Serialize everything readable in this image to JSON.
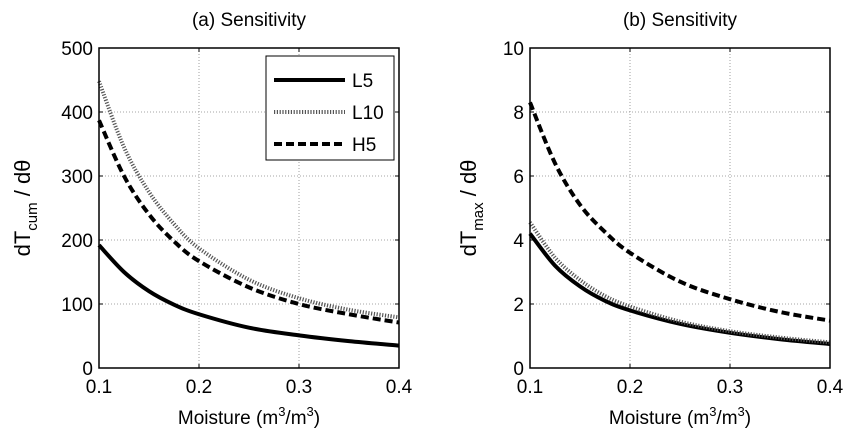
{
  "chart_data": [
    {
      "type": "line",
      "title": "(a) Sensitivity",
      "xlabel": {
        "base": "Moisture (m",
        "sup1": "3",
        "mid": "/m",
        "sup2": "3",
        "end": ")"
      },
      "ylabel": {
        "pre": "dT",
        "sub": "cum",
        "post": " / dθ"
      },
      "xlim": [
        0.1,
        0.4
      ],
      "ylim": [
        0,
        500
      ],
      "xticks": [
        "0.1",
        "0.2",
        "0.3",
        "0.4"
      ],
      "yticks": [
        "0",
        "100",
        "200",
        "300",
        "400",
        "500"
      ],
      "grid": true,
      "legend_position": "top-right",
      "series": [
        {
          "name": "L5",
          "style": "solid",
          "x": [
            0.1,
            0.125,
            0.15,
            0.175,
            0.2,
            0.25,
            0.3,
            0.35,
            0.4
          ],
          "y": [
            192,
            150,
            120,
            99,
            84,
            63,
            51,
            42,
            35
          ]
        },
        {
          "name": "L10",
          "style": "dotted",
          "x": [
            0.1,
            0.125,
            0.15,
            0.175,
            0.2,
            0.25,
            0.3,
            0.35,
            0.4
          ],
          "y": [
            448,
            345,
            275,
            225,
            187,
            138,
            109,
            91,
            79
          ]
        },
        {
          "name": "H5",
          "style": "dashed",
          "x": [
            0.1,
            0.125,
            0.15,
            0.175,
            0.2,
            0.25,
            0.3,
            0.35,
            0.4
          ],
          "y": [
            387,
            300,
            240,
            198,
            167,
            126,
            100,
            84,
            71
          ]
        }
      ]
    },
    {
      "type": "line",
      "title": "(b) Sensitivity",
      "xlabel": {
        "base": "Moisture (m",
        "sup1": "3",
        "mid": "/m",
        "sup2": "3",
        "end": ")"
      },
      "ylabel": {
        "pre": "dT",
        "sub": "max",
        "post": " / dθ"
      },
      "xlim": [
        0.1,
        0.4
      ],
      "ylim": [
        0,
        10
      ],
      "xticks": [
        "0.1",
        "0.2",
        "0.3",
        "0.4"
      ],
      "yticks": [
        "0",
        "2",
        "4",
        "6",
        "8",
        "10"
      ],
      "grid": true,
      "series": [
        {
          "name": "L5",
          "style": "solid",
          "x": [
            0.1,
            0.125,
            0.15,
            0.175,
            0.2,
            0.25,
            0.3,
            0.35,
            0.4
          ],
          "y": [
            4.2,
            3.2,
            2.55,
            2.1,
            1.8,
            1.38,
            1.1,
            0.9,
            0.75
          ]
        },
        {
          "name": "L10",
          "style": "dotted",
          "x": [
            0.1,
            0.125,
            0.15,
            0.175,
            0.2,
            0.25,
            0.3,
            0.35,
            0.4
          ],
          "y": [
            4.55,
            3.45,
            2.75,
            2.25,
            1.92,
            1.45,
            1.15,
            0.95,
            0.8
          ]
        },
        {
          "name": "H5",
          "style": "dashed",
          "x": [
            0.1,
            0.125,
            0.15,
            0.175,
            0.2,
            0.25,
            0.3,
            0.35,
            0.4
          ],
          "y": [
            8.3,
            6.4,
            5.1,
            4.25,
            3.6,
            2.7,
            2.15,
            1.75,
            1.48
          ]
        }
      ]
    }
  ]
}
